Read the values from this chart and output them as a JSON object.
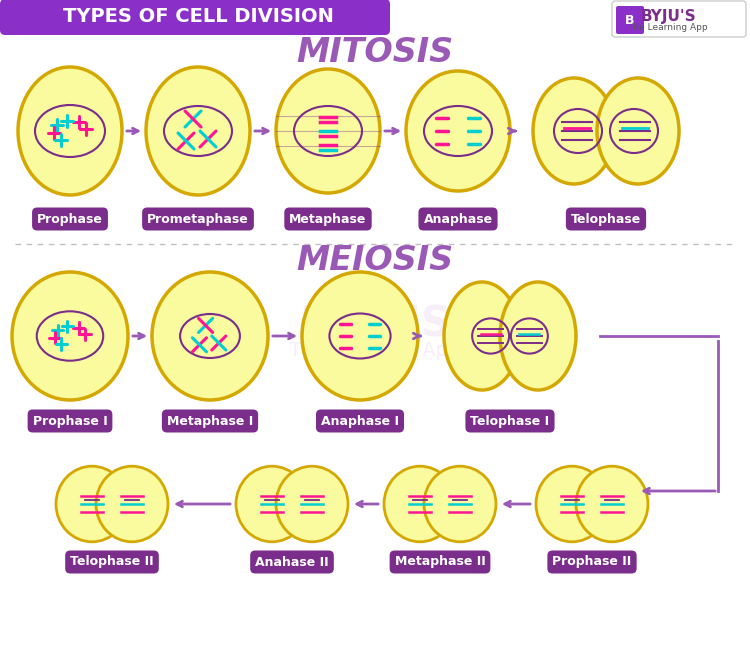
{
  "title": "TYPES OF CELL DIVISION",
  "title_bg_color": "#8B2FC9",
  "title_text_color": "#FFFFFF",
  "bg_color": "#FFFFFF",
  "mitosis_title": "MITOSIS",
  "meiosis_title": "MEIOSIS",
  "section_title_color": "#9B59B6",
  "mitosis_stages": [
    "Prophase",
    "Prometaphase",
    "Metaphase",
    "Anaphase",
    "Telophase"
  ],
  "meiosis_stages_row1": [
    "Prophase I",
    "Metaphase I",
    "Anaphase I",
    "Telophase I"
  ],
  "meiosis_stages_row2": [
    "Telophase II",
    "Anahase II",
    "Metaphase II",
    "Prophase II"
  ],
  "cell_fill": "#FAFA9E",
  "cell_border": "#D4A800",
  "label_bg": "#7B2D8B",
  "label_text": "#FFFFFF",
  "arrow_color": "#9B59B6",
  "separator_color": "#C0C0C0",
  "logo_bg": "#8B2FC9",
  "logo_text": "#FFFFFF",
  "byjus_text_color": "#7B2D8B",
  "watermark_color": "#E8D0F0"
}
